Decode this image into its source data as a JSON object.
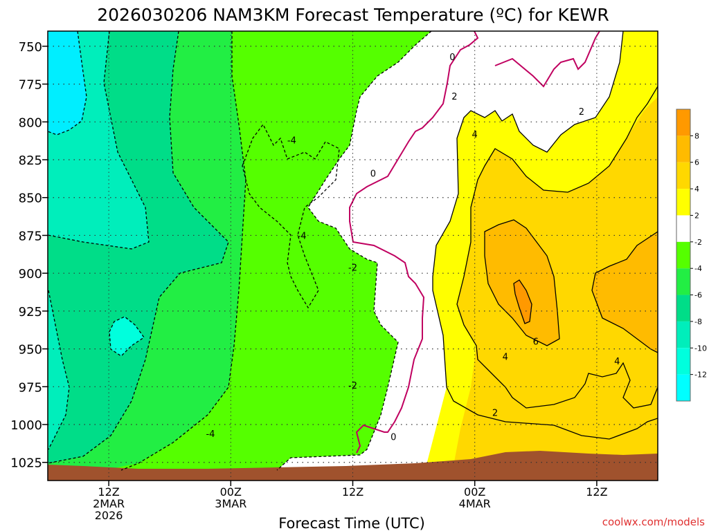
{
  "chart_data": {
    "type": "heatmap",
    "title": "2026030206 NAM3KM Forecast Temperature (ºC) for KEWR",
    "xlabel": "Forecast Time (UTC)",
    "ylabel": "",
    "yaxis": {
      "ticks": [
        "750",
        "775",
        "800",
        "825",
        "850",
        "875",
        "900",
        "925",
        "950",
        "975",
        "1000",
        "1025"
      ],
      "values": [
        750,
        775,
        800,
        825,
        850,
        875,
        900,
        925,
        950,
        975,
        1000,
        1025
      ],
      "range": [
        740,
        1037
      ],
      "inverted": true
    },
    "xaxis": {
      "ticks": [
        {
          "line1": "12Z",
          "line2": "2MAR",
          "line3": "2026",
          "hour": 12
        },
        {
          "line1": "00Z",
          "line2": "3MAR",
          "line3": "",
          "hour": 24
        },
        {
          "line1": "12Z",
          "line2": "",
          "line3": "",
          "hour": 36
        },
        {
          "line1": "00Z",
          "line2": "4MAR",
          "line3": "",
          "hour": 48
        },
        {
          "line1": "12Z",
          "line2": "",
          "line3": "",
          "hour": 60
        }
      ],
      "range_hours": [
        6,
        66
      ]
    },
    "colorbar": {
      "labels": [
        "8",
        "6",
        "4",
        "2",
        "-2",
        "-4",
        "-6",
        "-8",
        "-10",
        "-12"
      ],
      "bands": [
        "#ff9900",
        "#ffbb00",
        "#ffd800",
        "#ffff00",
        "#ffffff",
        "#55ff00",
        "#22ee44",
        "#00dd88",
        "#00eebb",
        "#00ffdd",
        "#00ffff"
      ]
    },
    "contour_labels": [
      {
        "text": "0",
        "hour": 45.8,
        "p": 757
      },
      {
        "text": "0",
        "hour": 38.0,
        "p": 834
      },
      {
        "text": "0",
        "hour": 40.0,
        "p": 1008
      },
      {
        "text": "2",
        "hour": 46.0,
        "p": 783
      },
      {
        "text": "2",
        "hour": 58.5,
        "p": 793
      },
      {
        "text": "2",
        "hour": 50.0,
        "p": 992
      },
      {
        "text": "4",
        "hour": 48.0,
        "p": 808
      },
      {
        "text": "4",
        "hour": 51.0,
        "p": 955
      },
      {
        "text": "4",
        "hour": 62.0,
        "p": 958
      },
      {
        "text": "6",
        "hour": 54.0,
        "p": 945
      },
      {
        "text": "-4",
        "hour": 30.0,
        "p": 812
      },
      {
        "text": "-4",
        "hour": 31.0,
        "p": 875
      },
      {
        "text": "-2",
        "hour": 36.0,
        "p": 896
      },
      {
        "text": "-2",
        "hour": 36.0,
        "p": 974
      },
      {
        "text": "-4",
        "hour": 22.0,
        "p": 1006
      }
    ],
    "grid": true
  },
  "credit": "coolwx.com/models"
}
